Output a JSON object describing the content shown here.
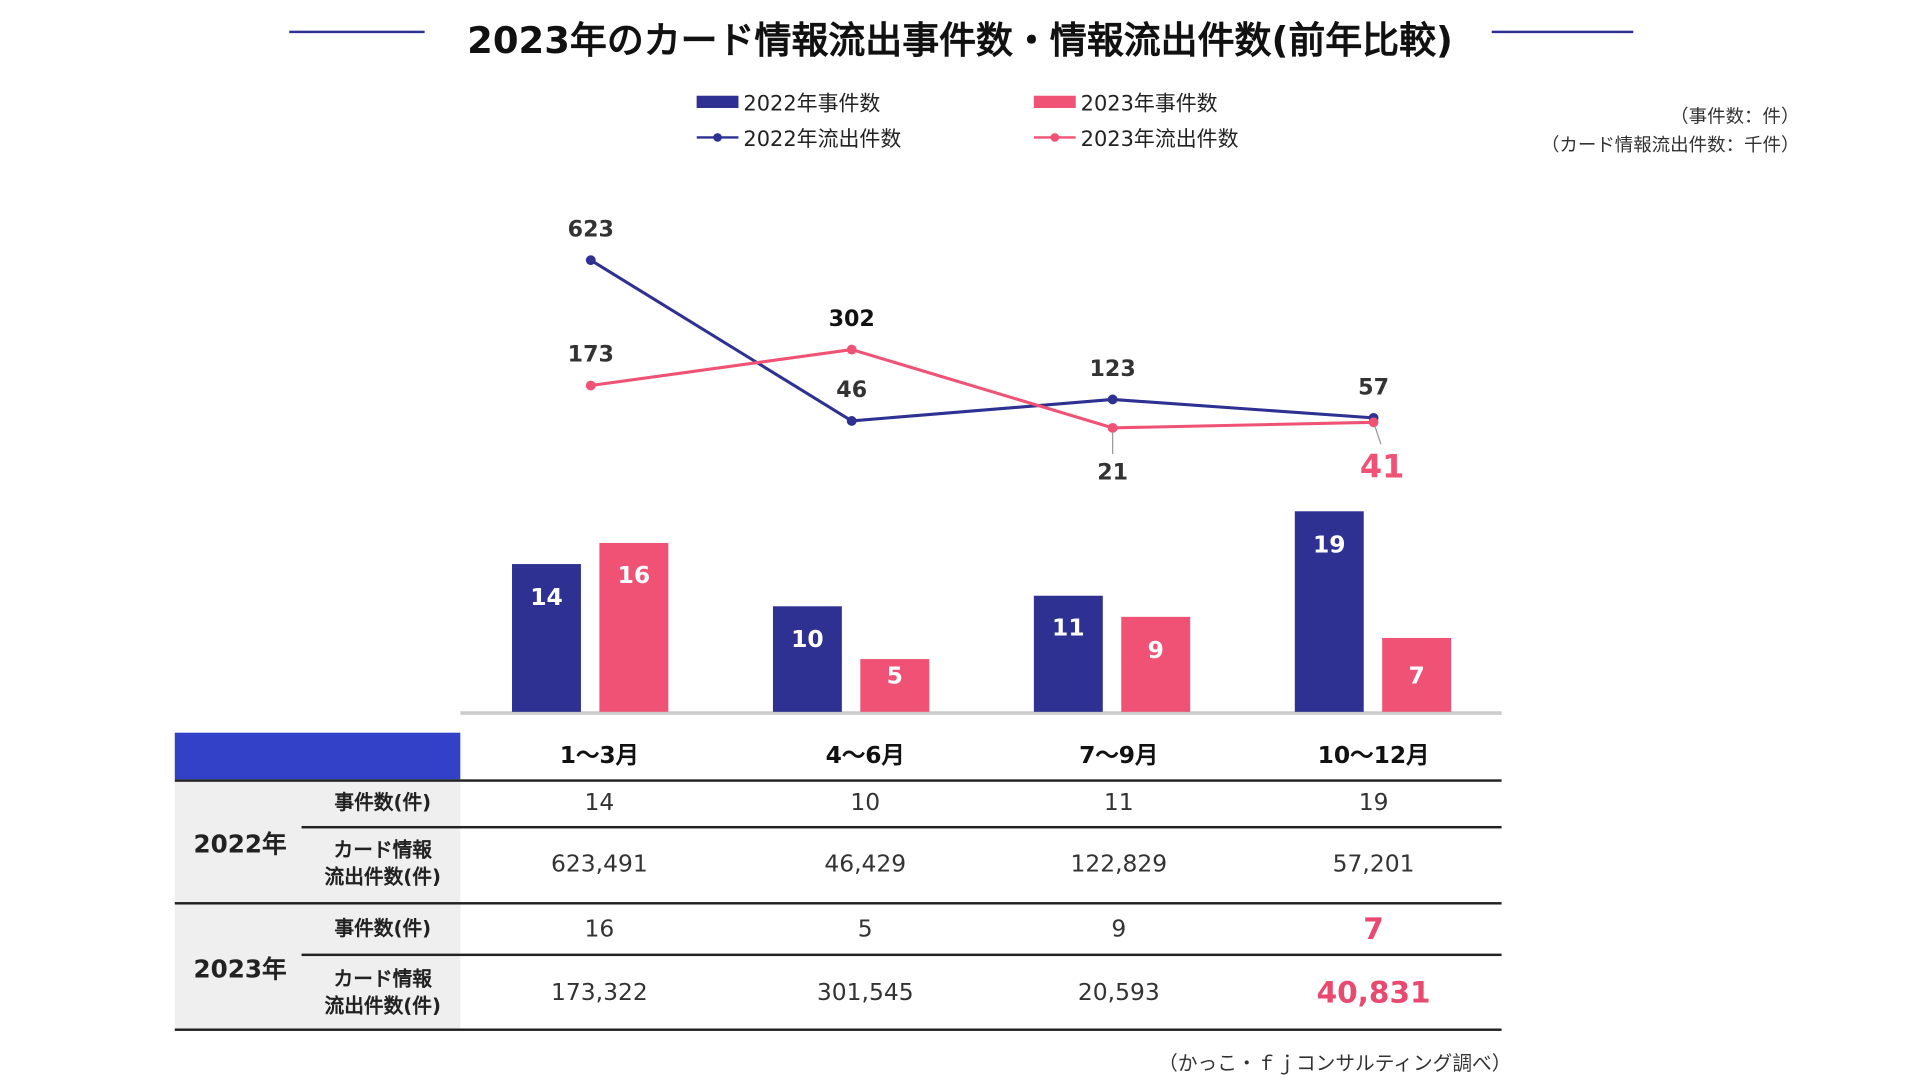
{
  "colors": {
    "y2022": "#2e3192",
    "y2023": "#ef5274",
    "header_block": "#3340c8",
    "table_bg": "#efefef"
  },
  "chart_data": {
    "type": "bar+line",
    "title": "2023年のカード情報流出事件数・情報流出件数(前年比較)",
    "categories": [
      "1～3月",
      "4～6月",
      "7～9月",
      "10～12月"
    ],
    "units": [
      "（事件数：件）",
      "（カード情報流出件数：千件）"
    ],
    "legend_position": "top",
    "series": [
      {
        "name": "2022年事件数",
        "kind": "bar",
        "values": [
          14,
          10,
          11,
          19
        ]
      },
      {
        "name": "2023年事件数",
        "kind": "bar",
        "values": [
          16,
          5,
          9,
          7
        ]
      },
      {
        "name": "2022年流出件数",
        "kind": "line",
        "values": [
          623,
          46,
          123,
          57
        ]
      },
      {
        "name": "2023年流出件数",
        "kind": "line",
        "values": [
          173,
          302,
          21,
          41
        ]
      }
    ]
  },
  "table": {
    "columns": [
      "1～3月",
      "4～6月",
      "7～9月",
      "10～12月"
    ],
    "rows": [
      {
        "year": "2022年",
        "label": "事件数(件)",
        "values": [
          "14",
          "10",
          "11",
          "19"
        ]
      },
      {
        "label": "カード情報\n流出件数(件)",
        "values": [
          "623,491",
          "46,429",
          "122,829",
          "57,201"
        ]
      },
      {
        "year": "2023年",
        "label": "事件数(件)",
        "values": [
          "16",
          "5",
          "9",
          "7"
        ]
      },
      {
        "label": "カード情報\n流出件数(件)",
        "values": [
          "173,322",
          "301,545",
          "20,593",
          "40,831"
        ]
      }
    ]
  },
  "source": "（かっこ・ｆｊコンサルティング調べ）"
}
